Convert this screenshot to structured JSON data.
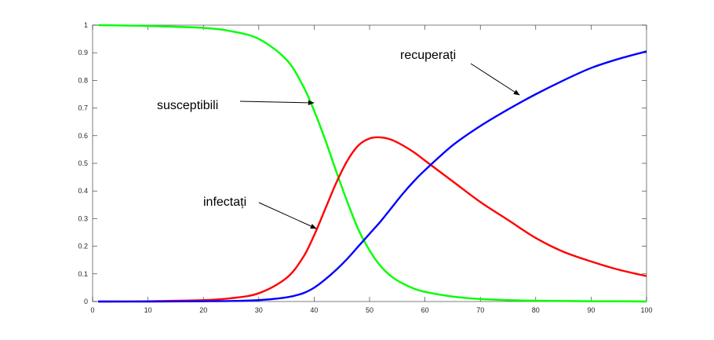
{
  "chart_data": {
    "type": "line",
    "title": "",
    "xlabel": "",
    "ylabel": "",
    "xlim": [
      0,
      100
    ],
    "ylim": [
      0,
      1
    ],
    "x_ticks": [
      "0",
      "10",
      "20",
      "30",
      "40",
      "50",
      "60",
      "70",
      "80",
      "90",
      "100"
    ],
    "y_ticks": [
      "0",
      "0.1",
      "0.2",
      "0.3",
      "0.4",
      "0.5",
      "0.6",
      "0.7",
      "0.8",
      "0.9",
      "1"
    ],
    "grid": false,
    "box": true,
    "x": [
      1,
      10,
      20,
      25,
      30,
      35,
      38,
      40,
      42,
      44,
      46,
      48,
      50,
      52,
      54,
      56,
      58,
      60,
      65,
      70,
      75,
      80,
      85,
      90,
      95,
      100
    ],
    "series": [
      {
        "key": "susceptible",
        "color": "#00ff00",
        "values": [
          1.0,
          0.997,
          0.99,
          0.978,
          0.95,
          0.875,
          0.78,
          0.69,
          0.585,
          0.47,
          0.36,
          0.26,
          0.185,
          0.128,
          0.09,
          0.065,
          0.047,
          0.035,
          0.018,
          0.009,
          0.005,
          0.003,
          0.002,
          0.001,
          0.001,
          0.0
        ]
      },
      {
        "key": "infected",
        "color": "#ff0000",
        "values": [
          0.0,
          0.001,
          0.005,
          0.012,
          0.03,
          0.085,
          0.16,
          0.24,
          0.335,
          0.43,
          0.51,
          0.565,
          0.59,
          0.594,
          0.585,
          0.565,
          0.54,
          0.51,
          0.435,
          0.36,
          0.295,
          0.23,
          0.18,
          0.145,
          0.115,
          0.092
        ]
      },
      {
        "key": "recovered",
        "color": "#0000ff",
        "values": [
          0.0,
          0.0,
          0.001,
          0.002,
          0.005,
          0.015,
          0.03,
          0.05,
          0.08,
          0.115,
          0.155,
          0.2,
          0.245,
          0.29,
          0.34,
          0.39,
          0.435,
          0.475,
          0.565,
          0.635,
          0.695,
          0.75,
          0.8,
          0.845,
          0.878,
          0.905
        ]
      }
    ],
    "annotations": [
      {
        "text": "susceptibili",
        "target": [
          41,
          0.72
        ]
      },
      {
        "text": "infectați",
        "target": [
          41,
          0.26
        ]
      },
      {
        "text": "recuperați",
        "target": [
          77,
          0.745
        ]
      }
    ]
  }
}
